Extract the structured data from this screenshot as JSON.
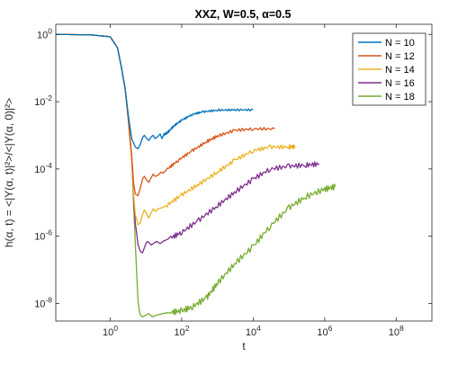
{
  "chart_data": {
    "type": "line",
    "title": "XXZ, W=0.5, α=0.5",
    "xlabel": "t",
    "ylabel": "h(α, t) = <|Y(α, t)|²>/<|Y(α, 0)|²>",
    "xscale": "log",
    "yscale": "log",
    "xlim": [
      0.03,
      1000000000
    ],
    "ylim": [
      3e-09,
      2
    ],
    "x_ticks": [
      1,
      100,
      10000,
      1000000,
      100000000
    ],
    "x_tick_labels": [
      "10^0",
      "10^2",
      "10^4",
      "10^6",
      "10^8"
    ],
    "y_ticks": [
      1e-08,
      1e-06,
      0.0001,
      0.01,
      1
    ],
    "y_tick_labels": [
      "10^-8",
      "10^-6",
      "10^-4",
      "10^-2",
      "10^0"
    ],
    "grid": false,
    "legend_position": "top-right",
    "series": [
      {
        "name": "N = 10",
        "color": "#0072BD",
        "points": [
          [
            0.03,
            1
          ],
          [
            0.3,
            0.97
          ],
          [
            1,
            0.85
          ],
          [
            1.6,
            0.4
          ],
          [
            2,
            0.12
          ],
          [
            2.6,
            0.025
          ],
          [
            3.2,
            0.004
          ],
          [
            4,
            0.0008
          ],
          [
            5,
            0.00045
          ],
          [
            6,
            0.0004
          ],
          [
            7,
            0.00055
          ],
          [
            8,
            0.00085
          ],
          [
            9,
            0.001
          ],
          [
            10,
            0.00085
          ],
          [
            12,
            0.0007
          ],
          [
            14,
            0.0009
          ],
          [
            16,
            0.001
          ],
          [
            18,
            0.0008
          ],
          [
            21,
            0.0009
          ],
          [
            25,
            0.0011
          ],
          [
            28,
            0.0008
          ],
          [
            32,
            0.00105
          ],
          [
            40,
            0.0012
          ],
          [
            60,
            0.0019
          ],
          [
            100,
            0.0028
          ],
          [
            200,
            0.0042
          ],
          [
            400,
            0.005
          ],
          [
            1000,
            0.0056
          ],
          [
            3000,
            0.0057
          ],
          [
            10000,
            0.0057
          ]
        ]
      },
      {
        "name": "N = 12",
        "color": "#D95319",
        "points": [
          [
            0.03,
            1
          ],
          [
            0.3,
            0.97
          ],
          [
            1,
            0.85
          ],
          [
            1.6,
            0.4
          ],
          [
            2,
            0.12
          ],
          [
            2.6,
            0.025
          ],
          [
            3.2,
            0.003
          ],
          [
            4,
            0.00025
          ],
          [
            4.5,
            4e-05
          ],
          [
            5,
            1.8e-05
          ],
          [
            6,
            1.6e-05
          ],
          [
            7,
            2.8e-05
          ],
          [
            8,
            5e-05
          ],
          [
            9,
            6e-05
          ],
          [
            10,
            5e-05
          ],
          [
            12,
            4e-05
          ],
          [
            14,
            5.5e-05
          ],
          [
            16,
            7e-05
          ],
          [
            18,
            6e-05
          ],
          [
            22,
            6.5e-05
          ],
          [
            26,
            8e-05
          ],
          [
            30,
            7.5e-05
          ],
          [
            40,
            0.0001
          ],
          [
            80,
            0.00018
          ],
          [
            200,
            0.00035
          ],
          [
            500,
            0.00065
          ],
          [
            1000,
            0.00095
          ],
          [
            3000,
            0.0014
          ],
          [
            10000,
            0.00155
          ],
          [
            40000,
            0.00155
          ]
        ]
      },
      {
        "name": "N = 14",
        "color": "#EDB120",
        "points": [
          [
            0.03,
            1
          ],
          [
            0.3,
            0.97
          ],
          [
            1,
            0.85
          ],
          [
            1.6,
            0.4
          ],
          [
            2,
            0.12
          ],
          [
            2.6,
            0.025
          ],
          [
            3.2,
            0.003
          ],
          [
            4,
            0.0002
          ],
          [
            4.5,
            2e-05
          ],
          [
            5,
            4.5e-06
          ],
          [
            6,
            2.2e-06
          ],
          [
            7,
            2.5e-06
          ],
          [
            8,
            4.5e-06
          ],
          [
            9,
            6e-06
          ],
          [
            10,
            5e-06
          ],
          [
            12,
            3.5e-06
          ],
          [
            14,
            5e-06
          ],
          [
            16,
            6.5e-06
          ],
          [
            18,
            5.5e-06
          ],
          [
            22,
            6.5e-06
          ],
          [
            28,
            7e-06
          ],
          [
            40,
            8.5e-06
          ],
          [
            100,
            1.7e-05
          ],
          [
            300,
            3.5e-05
          ],
          [
            1000,
            8e-05
          ],
          [
            3000,
            0.00018
          ],
          [
            10000,
            0.00035
          ],
          [
            30000,
            0.00045
          ],
          [
            100000,
            0.00045
          ],
          [
            150000,
            0.00046
          ]
        ]
      },
      {
        "name": "N = 16",
        "color": "#7E2F8E",
        "points": [
          [
            0.03,
            1
          ],
          [
            0.3,
            0.97
          ],
          [
            1,
            0.85
          ],
          [
            1.6,
            0.4
          ],
          [
            2,
            0.12
          ],
          [
            2.6,
            0.025
          ],
          [
            3.2,
            0.003
          ],
          [
            4,
            0.0002
          ],
          [
            4.5,
            1.5e-05
          ],
          [
            5,
            2.5e-06
          ],
          [
            5.5,
            1.2e-06
          ],
          [
            6,
            5.5e-07
          ],
          [
            7,
            3.5e-07
          ],
          [
            8,
            3.2e-07
          ],
          [
            9,
            4.5e-07
          ],
          [
            10,
            6e-07
          ],
          [
            11,
            7e-07
          ],
          [
            12,
            6.5e-07
          ],
          [
            14,
            5.5e-07
          ],
          [
            16,
            6e-07
          ],
          [
            20,
            7e-07
          ],
          [
            25,
            6e-07
          ],
          [
            30,
            7e-07
          ],
          [
            50,
            9e-07
          ],
          [
            100,
            1.3e-06
          ],
          [
            300,
            3e-06
          ],
          [
            1000,
            8e-06
          ],
          [
            3000,
            2e-05
          ],
          [
            10000,
            5e-05
          ],
          [
            30000,
            0.0001
          ],
          [
            100000,
            0.00012
          ],
          [
            300000,
            0.00013
          ],
          [
            700000,
            0.00014
          ]
        ]
      },
      {
        "name": "N = 18",
        "color": "#77AC30",
        "points": [
          [
            0.03,
            1
          ],
          [
            0.3,
            0.97
          ],
          [
            1,
            0.85
          ],
          [
            1.6,
            0.4
          ],
          [
            2,
            0.12
          ],
          [
            2.6,
            0.025
          ],
          [
            3.2,
            0.003
          ],
          [
            4,
            0.0002
          ],
          [
            4.5,
            1e-05
          ],
          [
            5,
            7e-07
          ],
          [
            5.5,
            8e-08
          ],
          [
            6,
            1.2e-08
          ],
          [
            6.5,
            6e-09
          ],
          [
            7,
            4.5e-09
          ],
          [
            8,
            4e-09
          ],
          [
            10,
            4.5e-09
          ],
          [
            12,
            5e-09
          ],
          [
            15,
            4e-09
          ],
          [
            20,
            4.5e-09
          ],
          [
            30,
            5e-09
          ],
          [
            50,
            5.5e-09
          ],
          [
            100,
            6e-09
          ],
          [
            200,
            8e-09
          ],
          [
            500,
            1.5e-08
          ],
          [
            1000,
            4e-08
          ],
          [
            3000,
            1.5e-07
          ],
          [
            10000,
            5e-07
          ],
          [
            30000,
            2e-06
          ],
          [
            100000,
            7e-06
          ],
          [
            300000,
            1.5e-05
          ],
          [
            1000000,
            2.5e-05
          ],
          [
            2000000,
            3e-05
          ]
        ]
      }
    ]
  }
}
